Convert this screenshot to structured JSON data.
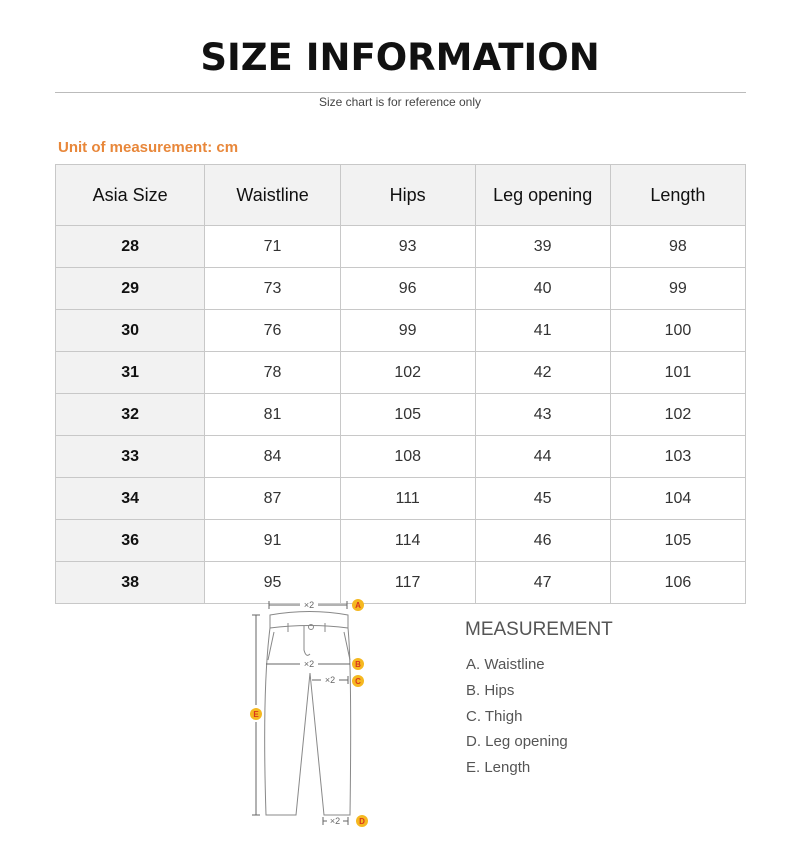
{
  "header": {
    "title": "SIZE INFORMATION",
    "subtitle": "Size chart is for reference only"
  },
  "unit_label": "Unit of measurement: cm",
  "accent_color": "#e8873a",
  "table": {
    "headers": [
      "Asia Size",
      "Waistline",
      "Hips",
      "Leg opening",
      "Length"
    ],
    "rows": [
      [
        "28",
        "71",
        "93",
        "39",
        "98"
      ],
      [
        "29",
        "73",
        "96",
        "40",
        "99"
      ],
      [
        "30",
        "76",
        "99",
        "41",
        "100"
      ],
      [
        "31",
        "78",
        "102",
        "42",
        "101"
      ],
      [
        "32",
        "81",
        "105",
        "43",
        "102"
      ],
      [
        "33",
        "84",
        "108",
        "44",
        "103"
      ],
      [
        "34",
        "87",
        "111",
        "45",
        "104"
      ],
      [
        "36",
        "91",
        "114",
        "46",
        "105"
      ],
      [
        "38",
        "95",
        "117",
        "47",
        "106"
      ]
    ]
  },
  "diagram": {
    "markers": [
      "A",
      "B",
      "C",
      "D",
      "E"
    ],
    "multiplier": "×2"
  },
  "measurement": {
    "title": "MEASUREMENT",
    "items": [
      "A. Waistline",
      "B. Hips",
      "C. Thigh",
      "D. Leg opening",
      "E. Length"
    ]
  }
}
